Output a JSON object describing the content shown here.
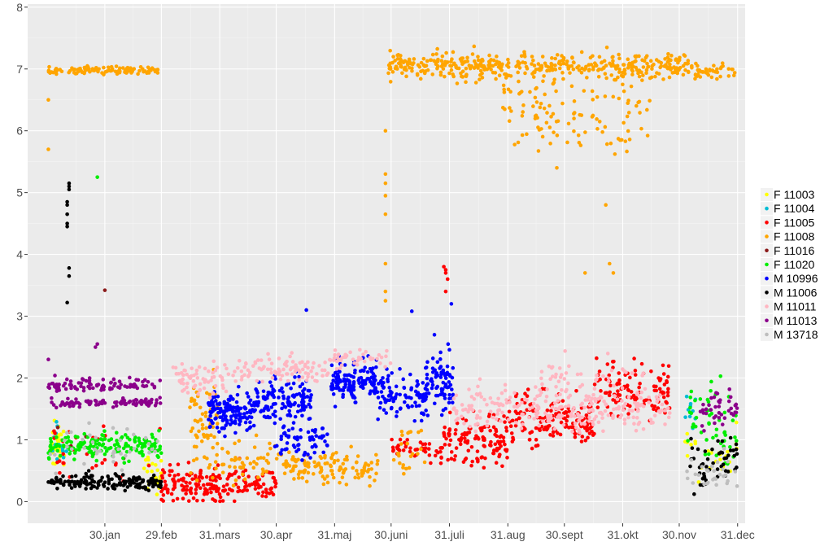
{
  "chart_data": {
    "type": "scatter",
    "title": "",
    "xlabel": "",
    "ylabel": "",
    "x_range_days": [
      -11,
      370
    ],
    "ylim": [
      -0.35,
      8.05
    ],
    "y_ticks": [
      0,
      1,
      2,
      3,
      4,
      5,
      6,
      7,
      8
    ],
    "x_ticks": [
      {
        "day": 30,
        "label": "30.jan"
      },
      {
        "day": 60,
        "label": "29.feb"
      },
      {
        "day": 91,
        "label": "31.mars"
      },
      {
        "day": 121,
        "label": "30.apr"
      },
      {
        "day": 152,
        "label": "31.maj"
      },
      {
        "day": 182,
        "label": "30.juni"
      },
      {
        "day": 213,
        "label": "31.juli"
      },
      {
        "day": 244,
        "label": "31.aug"
      },
      {
        "day": 274,
        "label": "30.sept"
      },
      {
        "day": 305,
        "label": "31.okt"
      },
      {
        "day": 335,
        "label": "30.nov"
      },
      {
        "day": 366,
        "label": "31.dec"
      }
    ],
    "grid": true,
    "legend_position": "right",
    "series": [
      {
        "name": "F 11003",
        "color": "#ffff00",
        "segments": [
          [
            0,
            10,
            30,
            0.9,
            0.3
          ],
          [
            50,
            60,
            25,
            0.45,
            0.25
          ],
          [
            338,
            366,
            25,
            0.8,
            0.35
          ]
        ]
      },
      {
        "name": "F 11004",
        "color": "#00bcd4",
        "segments": [
          [
            0,
            10,
            15,
            0.9,
            0.3
          ],
          [
            338,
            345,
            10,
            1.5,
            0.25
          ]
        ]
      },
      {
        "name": "F 11005",
        "color": "#ff0000",
        "segments": [
          [
            60,
            91,
            120,
            0.28,
            0.25
          ],
          [
            91,
            121,
            80,
            0.3,
            0.25
          ],
          [
            182,
            210,
            45,
            0.85,
            0.15
          ],
          [
            210,
            244,
            120,
            1.0,
            0.35
          ],
          [
            244,
            290,
            160,
            1.3,
            0.35
          ],
          [
            290,
            330,
            120,
            1.8,
            0.35
          ],
          [
            0,
            60,
            30,
            0.8,
            0.4
          ]
        ],
        "points": [
          [
            210,
            3.8
          ],
          [
            211,
            3.75
          ],
          [
            211,
            3.7
          ],
          [
            212,
            3.6
          ],
          [
            211,
            3.4
          ]
        ]
      },
      {
        "name": "F 11008",
        "color": "#ffa500",
        "segments": [
          [
            0,
            60,
            110,
            6.98,
            0.05
          ],
          [
            180,
            340,
            420,
            7.05,
            0.18
          ],
          [
            240,
            320,
            120,
            6.4,
            0.55
          ],
          [
            340,
            366,
            45,
            6.95,
            0.12
          ],
          [
            75,
            90,
            70,
            1.1,
            0.7
          ],
          [
            91,
            130,
            60,
            0.65,
            0.25
          ],
          [
            130,
            175,
            110,
            0.55,
            0.2
          ],
          [
            183,
            200,
            25,
            0.8,
            0.35
          ]
        ],
        "points": [
          [
            0,
            6.5
          ],
          [
            0,
            5.7
          ],
          [
            179,
            5.3
          ],
          [
            179,
            5.15
          ],
          [
            179,
            4.95
          ],
          [
            179,
            4.65
          ],
          [
            179,
            3.85
          ],
          [
            179,
            3.4
          ],
          [
            179,
            3.25
          ],
          [
            179,
            6.0
          ],
          [
            270,
            5.4
          ],
          [
            285,
            3.7
          ],
          [
            298,
            3.85
          ],
          [
            300,
            3.7
          ],
          [
            296,
            4.8
          ]
        ]
      },
      {
        "name": "F 11016",
        "color": "#8b1a1a",
        "points": [
          [
            30,
            3.42
          ],
          [
            5,
            1.2
          ],
          [
            12,
            0.9
          ],
          [
            20,
            1.05
          ],
          [
            40,
            0.7
          ]
        ]
      },
      {
        "name": "F 11020",
        "color": "#00ee00",
        "segments": [
          [
            0,
            60,
            170,
            0.9,
            0.18
          ],
          [
            338,
            366,
            50,
            1.3,
            0.6
          ]
        ],
        "points": [
          [
            26,
            5.25
          ]
        ]
      },
      {
        "name": "M 10996",
        "color": "#0000ff",
        "segments": [
          [
            85,
            110,
            140,
            1.45,
            0.25
          ],
          [
            110,
            140,
            130,
            1.65,
            0.3
          ],
          [
            120,
            150,
            60,
            1.0,
            0.25
          ],
          [
            150,
            175,
            140,
            1.95,
            0.3
          ],
          [
            175,
            200,
            90,
            1.7,
            0.3
          ],
          [
            200,
            215,
            80,
            1.9,
            0.4
          ]
        ],
        "points": [
          [
            137,
            3.1
          ],
          [
            193,
            3.08
          ],
          [
            214,
            3.2
          ],
          [
            205,
            2.7
          ]
        ]
      },
      {
        "name": "M 11006",
        "color": "#000000",
        "segments": [
          [
            0,
            60,
            160,
            0.32,
            0.1
          ],
          [
            338,
            366,
            50,
            0.6,
            0.35
          ]
        ],
        "points": [
          [
            11,
            5.15
          ],
          [
            11,
            5.1
          ],
          [
            11,
            5.05
          ],
          [
            10,
            4.85
          ],
          [
            10,
            4.8
          ],
          [
            10,
            4.65
          ],
          [
            10,
            4.5
          ],
          [
            10,
            4.45
          ],
          [
            11,
            3.78
          ],
          [
            11,
            3.65
          ],
          [
            10,
            3.22
          ]
        ]
      },
      {
        "name": "M 11011",
        "color": "#ffb6c1",
        "segments": [
          [
            65,
            100,
            70,
            2.0,
            0.2
          ],
          [
            100,
            150,
            90,
            2.15,
            0.2
          ],
          [
            150,
            182,
            40,
            2.3,
            0.15
          ],
          [
            215,
            250,
            70,
            1.55,
            0.3
          ],
          [
            250,
            330,
            180,
            1.5,
            0.3
          ],
          [
            260,
            320,
            40,
            2.0,
            0.3
          ]
        ]
      },
      {
        "name": "M 11013",
        "color": "#8b008b",
        "segments": [
          [
            0,
            60,
            90,
            1.6,
            0.06
          ],
          [
            0,
            60,
            90,
            1.9,
            0.08
          ],
          [
            345,
            366,
            40,
            1.5,
            0.3
          ]
        ],
        "points": [
          [
            0,
            2.3
          ],
          [
            25,
            2.5
          ],
          [
            26,
            2.55
          ]
        ]
      },
      {
        "name": "M 13718",
        "color": "#bebebe",
        "segments": [
          [
            0,
            60,
            40,
            0.9,
            0.3
          ],
          [
            338,
            366,
            30,
            0.4,
            0.25
          ]
        ]
      }
    ]
  }
}
